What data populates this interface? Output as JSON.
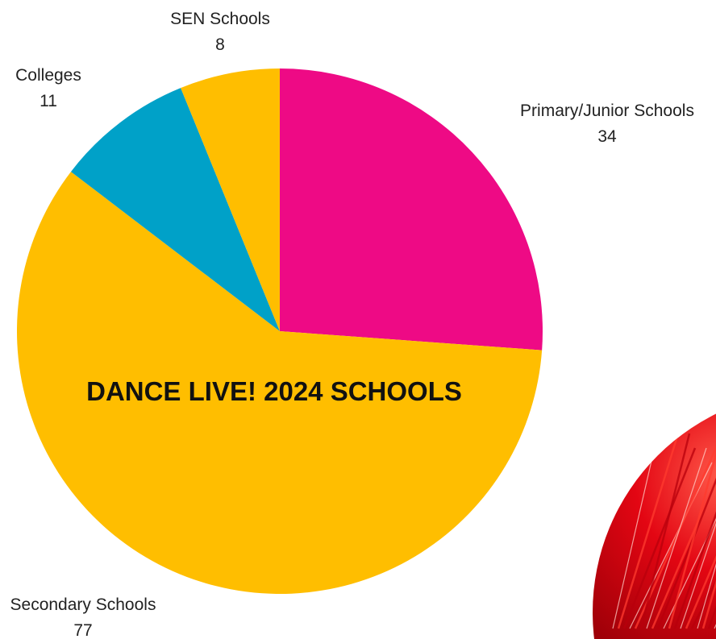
{
  "chart_data": {
    "type": "pie",
    "title": "DANCE LIVE! 2024 SCHOOLS",
    "slices": [
      {
        "label": "Primary/Junior Schools",
        "value": 34,
        "color": "#EE0A85"
      },
      {
        "label": "Secondary Schools",
        "value": 77,
        "color": "#FFBE00"
      },
      {
        "label": "Colleges",
        "value": 11,
        "color": "#00A1C8"
      },
      {
        "label": "SEN Schools",
        "value": 8,
        "color": "#FFBE00"
      }
    ]
  },
  "decor": {
    "photo_colors": [
      "#e30613",
      "#ff3b2f",
      "#b8000c"
    ]
  }
}
